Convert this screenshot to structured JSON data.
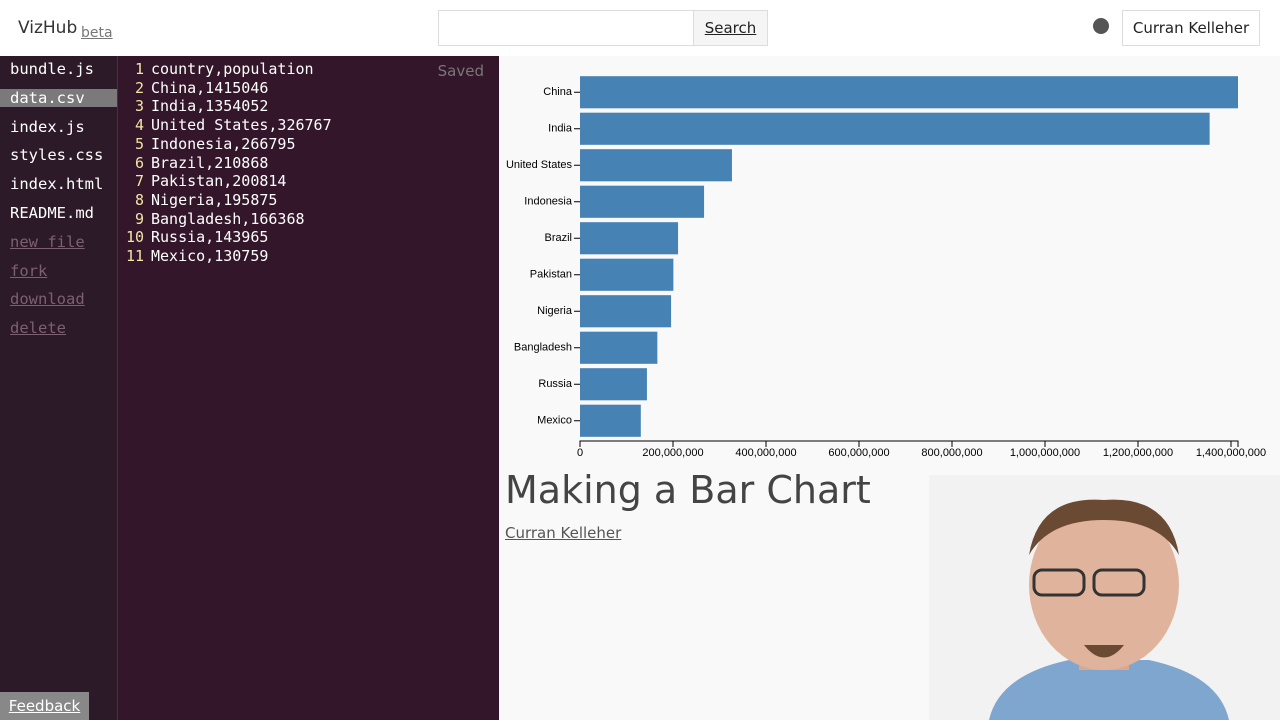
{
  "header": {
    "brand": "VizHub",
    "badge": "beta",
    "search_button": "Search",
    "user": "Curran Kelleher"
  },
  "sidebar": {
    "files": [
      "bundle.js",
      "data.csv",
      "index.js",
      "styles.css",
      "index.html",
      "README.md"
    ],
    "selected": 1,
    "actions": [
      "new file",
      "fork",
      "download",
      "delete"
    ]
  },
  "editor": {
    "status": "Saved",
    "lines": [
      {
        "number": "1",
        "text": "country,population"
      },
      {
        "number": "2",
        "text": "China,1415046"
      },
      {
        "number": "3",
        "text": "India,1354052"
      },
      {
        "number": "4",
        "text": "United States,326767"
      },
      {
        "number": "5",
        "text": "Indonesia,266795"
      },
      {
        "number": "6",
        "text": "Brazil,210868"
      },
      {
        "number": "7",
        "text": "Pakistan,200814"
      },
      {
        "number": "8",
        "text": "Nigeria,195875"
      },
      {
        "number": "9",
        "text": "Bangladesh,166368"
      },
      {
        "number": "10",
        "text": "Russia,143965"
      },
      {
        "number": "11",
        "text": "Mexico,130759"
      }
    ]
  },
  "chart_data": {
    "type": "bar",
    "orientation": "horizontal",
    "categories": [
      "China",
      "India",
      "United States",
      "Indonesia",
      "Brazil",
      "Pakistan",
      "Nigeria",
      "Bangladesh",
      "Russia",
      "Mexico"
    ],
    "values": [
      1415046000,
      1354052000,
      326767000,
      266795000,
      210868000,
      200814000,
      195875000,
      166368000,
      143965000,
      130759000
    ],
    "color": "#4682b4",
    "xlim": [
      0,
      1415046000
    ],
    "xticks": [
      0,
      {
        "value": 200000000,
        "label": "200,000,000"
      },
      {
        "value": 400000000,
        "label": "400,000,000"
      },
      {
        "value": 600000000,
        "label": "600,000,000"
      },
      {
        "value": 800000000,
        "label": "800,000,000"
      },
      {
        "value": 1000000000,
        "label": "1,000,000,000"
      },
      {
        "value": 1200000000,
        "label": "1,200,000,000"
      },
      {
        "value": 1400000000,
        "label": "1,400,000,000"
      }
    ]
  },
  "article": {
    "title": "Making a Bar Chart",
    "author": "Curran Kelleher"
  },
  "feedback": "Feedback"
}
